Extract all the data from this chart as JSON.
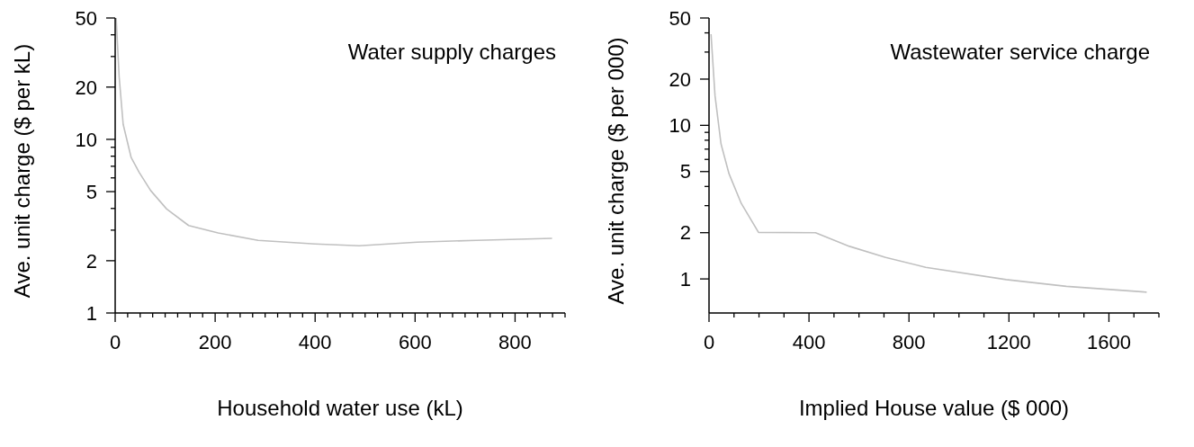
{
  "chart_data": [
    {
      "type": "line",
      "title": "Water supply charges",
      "xlabel": "Household water use (kL)",
      "ylabel": "Ave. unit charge ($ per kL)",
      "log": "y",
      "marker": "none",
      "line_style": "solid",
      "xlim": [
        0,
        900
      ],
      "xticks": [
        0,
        {
          "value": 25,
          "label": null
        },
        {
          "value": 50,
          "label": null
        },
        {
          "value": 75,
          "label": null
        },
        {
          "value": 100,
          "label": null
        },
        {
          "value": 125,
          "label": null
        },
        {
          "value": 150,
          "label": null
        },
        {
          "value": 175,
          "label": null
        },
        200,
        {
          "value": 225,
          "label": null
        },
        {
          "value": 250,
          "label": null
        },
        {
          "value": 275,
          "label": null
        },
        {
          "value": 300,
          "label": null
        },
        {
          "value": 325,
          "label": null
        },
        {
          "value": 350,
          "label": null
        },
        {
          "value": 375,
          "label": null
        },
        400,
        {
          "value": 425,
          "label": null
        },
        {
          "value": 450,
          "label": null
        },
        {
          "value": 475,
          "label": null
        },
        {
          "value": 500,
          "label": null
        },
        {
          "value": 525,
          "label": null
        },
        {
          "value": 550,
          "label": null
        },
        {
          "value": 575,
          "label": null
        },
        600,
        {
          "value": 625,
          "label": null
        },
        {
          "value": 650,
          "label": null
        },
        {
          "value": 675,
          "label": null
        },
        {
          "value": 700,
          "label": null
        },
        {
          "value": 725,
          "label": null
        },
        {
          "value": 750,
          "label": null
        },
        {
          "value": 775,
          "label": null
        },
        800,
        {
          "value": 825,
          "label": null
        },
        {
          "value": 850,
          "label": null
        },
        {
          "value": 875,
          "label": null
        },
        {
          "value": 900,
          "label": null
        }
      ],
      "ylim": [
        1,
        50
      ],
      "yticks": [
        1,
        2,
        {
          "value": 3,
          "label": null
        },
        {
          "value": 4,
          "label": null
        },
        5,
        {
          "value": 6,
          "label": null
        },
        {
          "value": 7,
          "label": null
        },
        {
          "value": 8,
          "label": null
        },
        {
          "value": 9,
          "label": null
        },
        10,
        20,
        {
          "value": 30,
          "label": null
        },
        {
          "value": 40,
          "label": null
        },
        50
      ],
      "series": [
        {
          "color": "#c0c0c0",
          "x": [
            2,
            8,
            16,
            32,
            48,
            71,
            103,
            147,
            206,
            286,
            400,
            488,
            604,
            723,
            874
          ],
          "values": [
            50,
            22.9,
            12.2,
            7.85,
            6.46,
            5.07,
            3.97,
            3.19,
            2.89,
            2.62,
            2.5,
            2.44,
            2.56,
            2.62,
            2.69
          ]
        }
      ]
    },
    {
      "type": "line",
      "title": "Wastewater service charge",
      "xlabel": "Implied House value ($ 000)",
      "ylabel": "Ave. unit charge ($ per 000)",
      "log": "y",
      "marker": "none",
      "line_style": "solid",
      "xlim": [
        0,
        1800
      ],
      "xticks": [
        0,
        {
          "value": 100,
          "label": null
        },
        {
          "value": 200,
          "label": null
        },
        {
          "value": 300,
          "label": null
        },
        400,
        {
          "value": 500,
          "label": null
        },
        {
          "value": 600,
          "label": null
        },
        {
          "value": 700,
          "label": null
        },
        800,
        {
          "value": 900,
          "label": null
        },
        {
          "value": 1000,
          "label": null
        },
        {
          "value": 1100,
          "label": null
        },
        1200,
        {
          "value": 1300,
          "label": null
        },
        {
          "value": 1400,
          "label": null
        },
        {
          "value": 1500,
          "label": null
        },
        1600,
        {
          "value": 1700,
          "label": null
        },
        {
          "value": 1800,
          "label": null
        }
      ],
      "ylim": [
        0.6,
        50
      ],
      "yticks": [
        1,
        2,
        {
          "value": 3,
          "label": null
        },
        {
          "value": 4,
          "label": null
        },
        5,
        {
          "value": 6,
          "label": null
        },
        {
          "value": 7,
          "label": null
        },
        {
          "value": 8,
          "label": null
        },
        {
          "value": 9,
          "label": null
        },
        10,
        20,
        {
          "value": 30,
          "label": null
        },
        {
          "value": 40,
          "label": null
        },
        50
      ],
      "series": [
        {
          "color": "#c0c0c0",
          "x": [
            8,
            24,
            48,
            80,
            129,
            198,
            426,
            562,
            707,
            867,
            1189,
            1430,
            1751
          ],
          "values": [
            39.2,
            15.6,
            7.57,
            4.84,
            3.1,
            2.01,
            2.0,
            1.63,
            1.38,
            1.19,
            0.99,
            0.895,
            0.82
          ]
        }
      ]
    }
  ]
}
